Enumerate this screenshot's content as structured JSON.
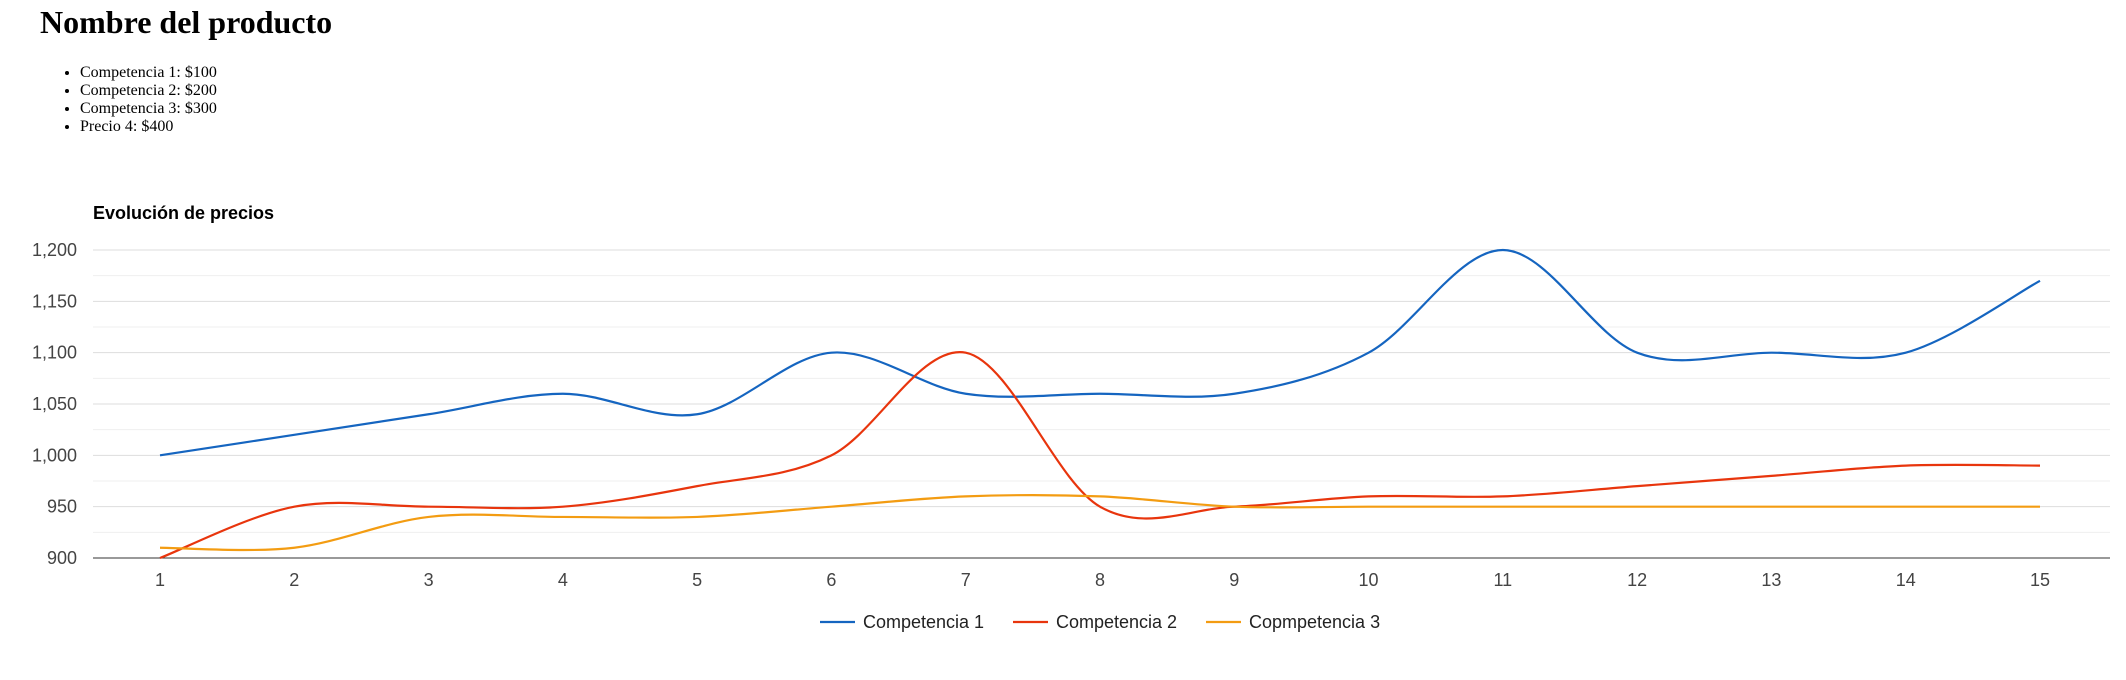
{
  "header": {
    "title": "Nombre del producto"
  },
  "price_list": [
    "Competencia 1: $100",
    "Competencia 2: $200",
    "Competencia 3: $300",
    "Precio 4: $400"
  ],
  "colors": {
    "series1": "#1565c0",
    "series2": "#e8350d",
    "series3": "#f39c12",
    "grid": "#dddddd",
    "minor_grid": "#efefef",
    "axis": "#333333"
  },
  "chart_data": {
    "type": "line",
    "title": "Evolución de precios",
    "x": [
      1,
      2,
      3,
      4,
      5,
      6,
      7,
      8,
      9,
      10,
      11,
      12,
      13,
      14,
      15
    ],
    "xticks": [
      "1",
      "2",
      "3",
      "4",
      "5",
      "6",
      "7",
      "8",
      "9",
      "10",
      "11",
      "12",
      "13",
      "14",
      "15"
    ],
    "yticks": [
      "900",
      "950",
      "1,000",
      "1,050",
      "1,100",
      "1,150",
      "1,200"
    ],
    "ylim": [
      900,
      1200
    ],
    "grid": true,
    "smooth": true,
    "legend_position": "bottom",
    "series": [
      {
        "name": "Competencia 1",
        "values": [
          1000,
          1020,
          1040,
          1060,
          1040,
          1100,
          1060,
          1060,
          1060,
          1100,
          1200,
          1100,
          1100,
          1100,
          1170
        ]
      },
      {
        "name": "Competencia 2",
        "values": [
          900,
          950,
          950,
          950,
          970,
          1000,
          1100,
          950,
          950,
          960,
          960,
          970,
          980,
          990,
          990
        ]
      },
      {
        "name": "Copmpetencia 3",
        "values": [
          910,
          910,
          940,
          940,
          940,
          950,
          960,
          960,
          950,
          950,
          950,
          950,
          950,
          950,
          950
        ]
      }
    ]
  }
}
